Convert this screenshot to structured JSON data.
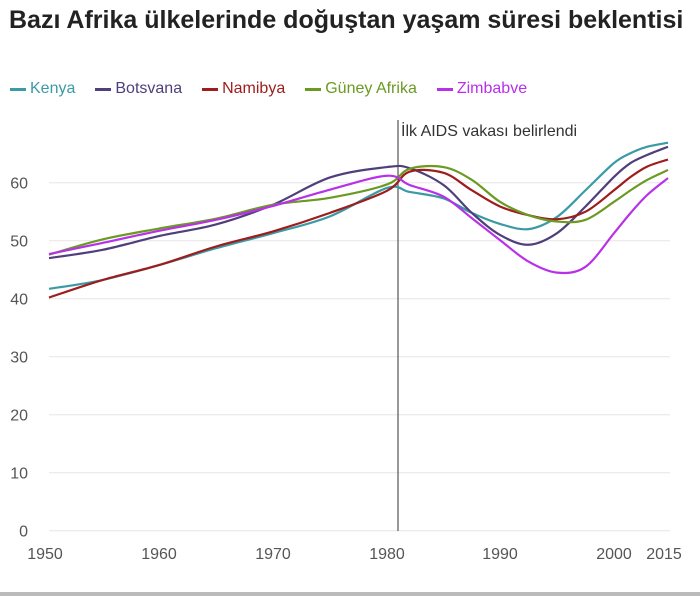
{
  "chart_data": {
    "type": "line",
    "title": "Bazı Afrika ülkelerinde doğuştan yaşam süresi beklentisi",
    "xlabel": "",
    "ylabel": "",
    "x_ticks": [
      1950,
      1960,
      1970,
      1980,
      1990,
      2000,
      2015
    ],
    "y_ticks": [
      0,
      10,
      20,
      30,
      40,
      50,
      60
    ],
    "ylim": [
      0,
      68
    ],
    "xlim": [
      1950,
      2015
    ],
    "grid": true,
    "legend_placement": "top",
    "annotation": {
      "x": 1981,
      "text": "İlk AIDS vakası belirlendi"
    },
    "x": [
      1950,
      1955,
      1960,
      1965,
      1970,
      1975,
      1980,
      1982,
      1985,
      1987.5,
      1990,
      1992.5,
      1995,
      1997.5,
      2000,
      2005,
      2010,
      2015
    ],
    "series": [
      {
        "name": "Kenya",
        "color": "#3a9aa6",
        "values": [
          41.7,
          43.2,
          45.8,
          48.7,
          51.3,
          54.2,
          59.1,
          58.4,
          57.3,
          54.8,
          52.9,
          52.0,
          54.1,
          58.7,
          63.4,
          65.1,
          66.2,
          66.9
        ]
      },
      {
        "name": "Botsvana",
        "color": "#4f3f7a",
        "values": [
          47.0,
          48.4,
          50.8,
          52.8,
          56.2,
          60.9,
          62.7,
          62.5,
          59.6,
          54.8,
          51.0,
          49.3,
          51.3,
          55.9,
          61.0,
          63.4,
          64.8,
          66.2
        ]
      },
      {
        "name": "Namibya",
        "color": "#9e1c1c",
        "values": [
          40.2,
          43.2,
          45.8,
          49.0,
          51.6,
          54.8,
          58.6,
          61.9,
          61.7,
          58.7,
          55.9,
          54.4,
          53.7,
          55.0,
          58.7,
          61.0,
          62.8,
          64.0
        ]
      },
      {
        "name": "Güney Afrika",
        "color": "#6a9a22",
        "values": [
          47.6,
          50.2,
          52.1,
          53.8,
          56.2,
          57.4,
          59.7,
          62.4,
          62.7,
          60.5,
          56.7,
          54.4,
          53.3,
          53.6,
          56.7,
          58.7,
          60.5,
          62.2
        ]
      },
      {
        "name": "Zimbabve",
        "color": "#b830e8",
        "values": [
          47.7,
          49.6,
          51.7,
          53.6,
          56.0,
          58.8,
          61.2,
          59.6,
          57.6,
          53.9,
          50.1,
          46.4,
          44.5,
          45.5,
          51.3,
          54.8,
          57.9,
          60.8
        ]
      }
    ]
  }
}
